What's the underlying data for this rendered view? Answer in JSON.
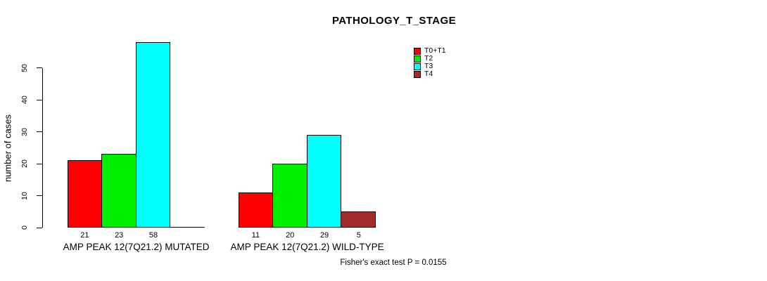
{
  "page": {
    "background_color": "#FFFFFF",
    "text_color": "#000000"
  },
  "chart_data": {
    "type": "bar",
    "title": "PATHOLOGY_T_STAGE",
    "ylabel": "number of cases",
    "xlabel": "",
    "ylim": [
      0,
      58
    ],
    "yticks": [
      0,
      10,
      20,
      30,
      40,
      50
    ],
    "grid": false,
    "legend_position": "top-right",
    "series": [
      {
        "name": "T0+T1",
        "color": "#FF0000"
      },
      {
        "name": "T2",
        "color": "#00EE00"
      },
      {
        "name": "T3",
        "color": "#00FFFF"
      },
      {
        "name": "T4",
        "color": "#A52A2A"
      }
    ],
    "categories": [
      "AMP PEAK 12(7Q21.2) MUTATED",
      "AMP PEAK 12(7Q21.2) WILD-TYPE"
    ],
    "groups": [
      {
        "label": "AMP PEAK 12(7Q21.2) MUTATED",
        "values": [
          21,
          23,
          58,
          0
        ]
      },
      {
        "label": "AMP PEAK 12(7Q21.2) WILD-TYPE",
        "values": [
          11,
          20,
          29,
          5
        ]
      }
    ],
    "bar_border_color": "#000000",
    "axis_color": "#000000",
    "annotation": "Fisher's exact test P = 0.0155"
  }
}
